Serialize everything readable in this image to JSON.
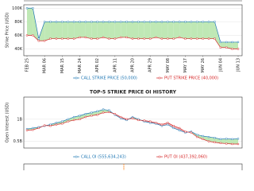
{
  "chart_data": [
    {
      "type": "line",
      "y_label": "Strike Price (USD)",
      "categories": [
        "FEB 25",
        null,
        null,
        "MAR 06",
        null,
        null,
        "MAR 15",
        null,
        null,
        "MAR 24",
        null,
        null,
        "APR 02",
        null,
        null,
        "APR 11",
        null,
        null,
        "APR 20",
        null,
        null,
        "APR 29",
        null,
        null,
        "MAY 08",
        null,
        null,
        "MAY 17",
        null,
        null,
        "MAY 26",
        null,
        null,
        "JUN 04",
        null,
        null,
        "JUN 13"
      ],
      "ylim": [
        30000,
        105000
      ],
      "yticks": [
        {
          "value": 40000,
          "label": "40K"
        },
        {
          "value": 60000,
          "label": "60K"
        },
        {
          "value": 80000,
          "label": "80K"
        },
        {
          "value": 100000,
          "label": "100K"
        }
      ],
      "grid": true,
      "series": [
        {
          "name": "CALL STRIKE PRICE (50,000)",
          "color": "#1f77b4",
          "values": [
            100000,
            100000,
            55000,
            80000,
            80000,
            80000,
            80000,
            80000,
            80000,
            80000,
            80000,
            80000,
            80000,
            80000,
            80000,
            80000,
            80000,
            80000,
            80000,
            80000,
            80000,
            80000,
            80000,
            80000,
            80000,
            80000,
            80000,
            80000,
            80000,
            80000,
            80000,
            80000,
            80000,
            50000,
            50000,
            50000,
            50000
          ]
        },
        {
          "name": "PUT STRIKE PRICE (40,000)",
          "color": "#d62728",
          "values": [
            60000,
            60000,
            52000,
            52000,
            55000,
            55000,
            55000,
            55000,
            55000,
            57000,
            57000,
            55000,
            55000,
            57000,
            55000,
            55000,
            57000,
            57000,
            55000,
            55000,
            55000,
            55000,
            57000,
            55000,
            55000,
            55000,
            57000,
            55000,
            55000,
            55000,
            55000,
            55000,
            55000,
            42000,
            42000,
            40000,
            40000
          ]
        }
      ]
    },
    {
      "type": "line",
      "title": "TOP-5 STRIKE PRICE OI HISTORY",
      "y_label": "Open Interest (USD)",
      "ylim": [
        350000000,
        1500000000
      ],
      "yticks": [
        {
          "value": 500000000,
          "label": "0.5B"
        },
        {
          "value": 1000000000,
          "label": "1B"
        }
      ],
      "grid": true,
      "series": [
        {
          "name": "CALL OI (555,634,243)",
          "color": "#1f77b4",
          "values": [
            780000000,
            800000000,
            820000000,
            850000000,
            880000000,
            920000000,
            950000000,
            1000000000,
            1050000000,
            1080000000,
            1120000000,
            1150000000,
            1180000000,
            1220000000,
            1200000000,
            1100000000,
            1020000000,
            980000000,
            1050000000,
            1000000000,
            950000000,
            920000000,
            900000000,
            850000000,
            880000000,
            800000000,
            750000000,
            700000000,
            720000000,
            650000000,
            620000000,
            600000000,
            580000000,
            550000000,
            560000000,
            550000000,
            560000000
          ]
        },
        {
          "name": "PUT OI (437,392,060)",
          "color": "#d62728",
          "values": [
            750000000,
            760000000,
            800000000,
            860000000,
            850000000,
            880000000,
            900000000,
            950000000,
            980000000,
            1000000000,
            1050000000,
            1080000000,
            1100000000,
            1150000000,
            1160000000,
            1120000000,
            1050000000,
            1000000000,
            1020000000,
            980000000,
            970000000,
            950000000,
            920000000,
            880000000,
            920000000,
            850000000,
            800000000,
            720000000,
            700000000,
            600000000,
            550000000,
            500000000,
            480000000,
            460000000,
            450000000,
            440000000,
            440000000
          ]
        }
      ]
    }
  ]
}
